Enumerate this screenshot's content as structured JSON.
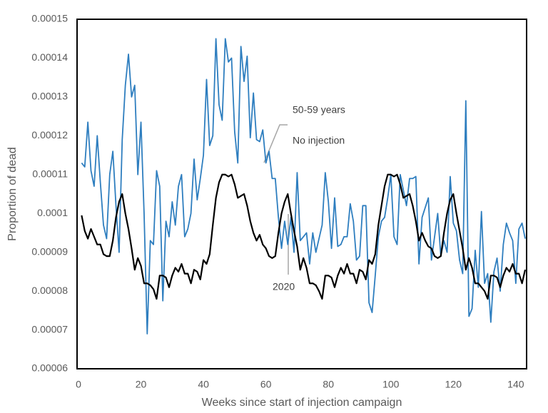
{
  "chart_data": {
    "type": "line",
    "annotation": "50-59 years",
    "x_label": "Weeks since start of injection campaign",
    "y_label": "Proportion of dead",
    "xlim": [
      0,
      143
    ],
    "ylim": [
      6e-05,
      0.00015
    ],
    "xticks": [
      0,
      20,
      40,
      60,
      80,
      100,
      120,
      140
    ],
    "yticks": [
      6e-05,
      7e-05,
      8e-05,
      9e-05,
      0.0001,
      0.00011,
      0.00012,
      0.00013,
      0.00014,
      0.00015
    ],
    "grid": false,
    "x": [
      1,
      2,
      3,
      4,
      5,
      6,
      7,
      8,
      9,
      10,
      11,
      12,
      13,
      14,
      15,
      16,
      17,
      18,
      19,
      20,
      21,
      22,
      23,
      24,
      25,
      26,
      27,
      28,
      29,
      30,
      31,
      32,
      33,
      34,
      35,
      36,
      37,
      38,
      39,
      40,
      41,
      42,
      43,
      44,
      45,
      46,
      47,
      48,
      49,
      50,
      51,
      52,
      53,
      54,
      55,
      56,
      57,
      58,
      59,
      60,
      61,
      62,
      63,
      64,
      65,
      66,
      67,
      68,
      69,
      70,
      71,
      72,
      73,
      74,
      75,
      76,
      77,
      78,
      79,
      80,
      81,
      82,
      83,
      84,
      85,
      86,
      87,
      88,
      89,
      90,
      91,
      92,
      93,
      94,
      95,
      96,
      97,
      98,
      99,
      100,
      101,
      102,
      103,
      104,
      105,
      106,
      107,
      108,
      109,
      110,
      111,
      112,
      113,
      114,
      115,
      116,
      117,
      118,
      119,
      120,
      121,
      122,
      123,
      124,
      125,
      126,
      127,
      128,
      129,
      130,
      131,
      132,
      133,
      134,
      135,
      136,
      137,
      138,
      139,
      140,
      141,
      142,
      143
    ],
    "series": [
      {
        "name": "No injection",
        "color": "#2e7ebf",
        "values": [
          0.000113,
          0.000112,
          0.0001235,
          0.000111,
          0.000107,
          0.00012,
          0.000108,
          9.7e-05,
          9.35e-05,
          0.00011,
          0.000116,
          0.000102,
          9e-05,
          0.000119,
          0.000133,
          0.000141,
          0.00013,
          0.000133,
          0.00011,
          0.0001235,
          0.0001,
          6.9e-05,
          9.3e-05,
          9.2e-05,
          0.000111,
          0.000107,
          7.75e-05,
          9.8e-05,
          9.4e-05,
          0.000103,
          9.7e-05,
          0.000107,
          0.00011,
          9.4e-05,
          9.6e-05,
          0.0001,
          0.000114,
          0.0001035,
          0.000109,
          0.000115,
          0.0001345,
          0.0001175,
          0.00012,
          0.000145,
          0.000128,
          0.000124,
          0.000145,
          0.000139,
          0.00014,
          0.000121,
          0.000113,
          0.000143,
          0.000134,
          0.0001405,
          0.0001195,
          0.000131,
          0.000119,
          0.0001185,
          0.0001215,
          0.000113,
          0.000116,
          0.000109,
          0.000109,
          9.9e-05,
          9.1e-05,
          9.8e-05,
          9.2e-05,
          9.9e-05,
          9e-05,
          0.0001105,
          9.3e-05,
          9.4e-05,
          9.5e-05,
          8.7e-05,
          9.5e-05,
          9e-05,
          9.35e-05,
          9.7e-05,
          0.0001105,
          0.000103,
          9.1e-05,
          0.000104,
          9.15e-05,
          9.2e-05,
          9.4e-05,
          9.4e-05,
          0.0001025,
          9.8e-05,
          8.8e-05,
          8.9e-05,
          0.000102,
          0.000102,
          7.7e-05,
          7.45e-05,
          8.4e-05,
          9.4e-05,
          9.8e-05,
          9.9e-05,
          0.000104,
          0.00011,
          9.4e-05,
          9.2e-05,
          0.00011,
          0.000106,
          0.000102,
          0.000109,
          0.000109,
          0.0001095,
          8.7e-05,
          9.9e-05,
          0.0001015,
          0.000104,
          8.8e-05,
          9.4e-05,
          0.0001,
          8.9e-05,
          9.3e-05,
          9e-05,
          0.0001095,
          9.75e-05,
          9.55e-05,
          8.8e-05,
          8.45e-05,
          0.000129,
          7.35e-05,
          7.55e-05,
          9.05e-05,
          8.1e-05,
          0.0001005,
          8.2e-05,
          8.45e-05,
          7.2e-05,
          8.5e-05,
          8.85e-05,
          8e-05,
          9.2e-05,
          9.75e-05,
          9.5e-05,
          9.3e-05,
          8.2e-05,
          9.6e-05,
          9.75e-05,
          9.35e-05
        ]
      },
      {
        "name": "2020",
        "color": "#000000",
        "values": [
          9.95e-05,
          9.55e-05,
          9.35e-05,
          9.6e-05,
          9.4e-05,
          9.2e-05,
          9.2e-05,
          8.95e-05,
          8.9e-05,
          8.9e-05,
          9.3e-05,
          9.9e-05,
          0.000103,
          0.000105,
          0.0001,
          9.6e-05,
          9.1e-05,
          8.55e-05,
          8.85e-05,
          8.65e-05,
          8.2e-05,
          8.2e-05,
          8.15e-05,
          8.05e-05,
          7.8e-05,
          8.4e-05,
          8.4e-05,
          8.35e-05,
          8.1e-05,
          8.4e-05,
          8.6e-05,
          8.5e-05,
          8.7e-05,
          8.45e-05,
          8.45e-05,
          8.2e-05,
          8.55e-05,
          8.5e-05,
          8.3e-05,
          8.8e-05,
          8.7e-05,
          8.95e-05,
          9.7e-05,
          0.000104,
          0.000108,
          0.00011,
          0.00011,
          0.0001095,
          0.00011,
          0.0001075,
          0.000104,
          0.0001045,
          0.000105,
          0.000102,
          9.8e-05,
          9.5e-05,
          9.3e-05,
          9.45e-05,
          9.2e-05,
          9.1e-05,
          8.9e-05,
          8.85e-05,
          8.9e-05,
          9.5e-05,
          0.0001,
          0.000103,
          0.000105,
          0.0001,
          9.55e-05,
          9.15e-05,
          8.55e-05,
          8.85e-05,
          8.6e-05,
          8.2e-05,
          8.2e-05,
          8.15e-05,
          8e-05,
          7.8e-05,
          8.4e-05,
          8.4e-05,
          8.35e-05,
          8.1e-05,
          8.4e-05,
          8.6e-05,
          8.45e-05,
          8.7e-05,
          8.45e-05,
          8.45e-05,
          8.2e-05,
          8.55e-05,
          8.5e-05,
          8.3e-05,
          8.8e-05,
          8.7e-05,
          8.95e-05,
          9.7e-05,
          0.000102,
          0.000107,
          0.00011,
          0.00011,
          0.0001095,
          0.00011,
          0.0001075,
          0.000104,
          0.0001045,
          0.000105,
          0.000102,
          9.8e-05,
          9.3e-05,
          9.5e-05,
          9.3e-05,
          9.15e-05,
          9.1e-05,
          8.9e-05,
          8.85e-05,
          8.9e-05,
          9.5e-05,
          0.0001,
          0.0001035,
          0.000105,
          0.0001,
          9.55e-05,
          9.1e-05,
          8.55e-05,
          8.85e-05,
          8.6e-05,
          8.2e-05,
          8.2e-05,
          8.1e-05,
          8e-05,
          7.8e-05,
          8.4e-05,
          8.4e-05,
          8.35e-05,
          8.1e-05,
          8.4e-05,
          8.6e-05,
          8.5e-05,
          8.7e-05,
          8.45e-05,
          8.45e-05,
          8.2e-05,
          8.55e-05
        ]
      }
    ]
  }
}
